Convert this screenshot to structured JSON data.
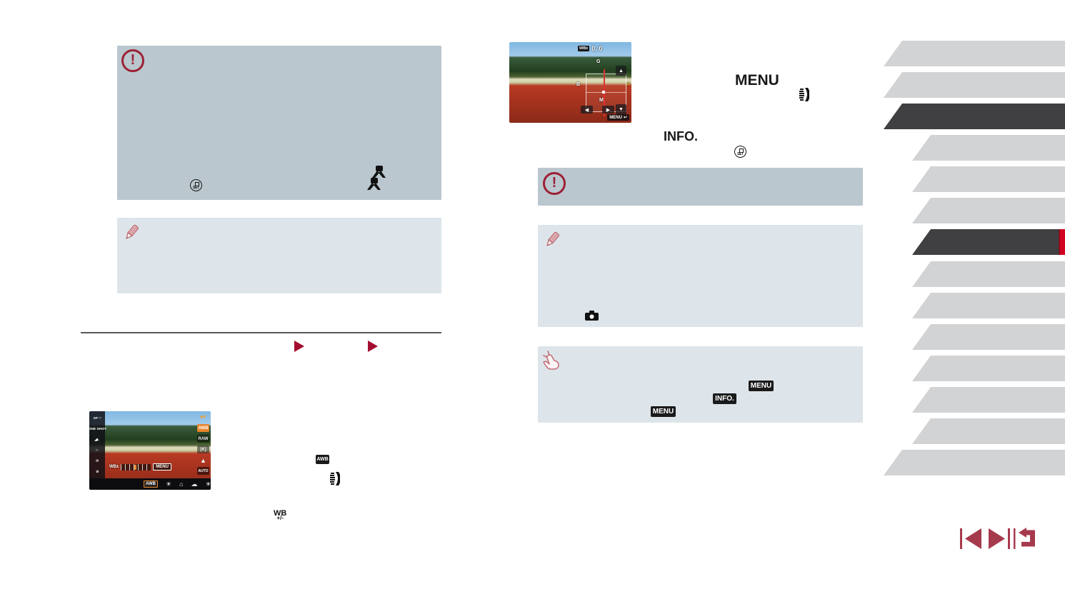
{
  "page_type": "camera manual page",
  "colors": {
    "warning_box_bg": "#bac7ce",
    "note_box_bg": "#dde5ea",
    "accent_red": "#9d2136",
    "triangle_red": "#a30d2f",
    "nav_red": "#a63a4d",
    "tab_light": "#d2d3d5",
    "tab_dark": "#404042",
    "tab_indicator_red": "#d0021f",
    "divider_gray": "#57585a"
  },
  "left_column": {
    "warning_box": {
      "set_button_label": "SET"
    },
    "inline_icons": {
      "awb_badge": "AWB",
      "wb_shift_top": "WB",
      "wb_shift_bottom": "+/-"
    }
  },
  "right_column": {
    "menu_label": "MENU",
    "info_label": "INFO.",
    "set_button_label": "SET",
    "touch_box_badges": [
      "MENU",
      "INFO.",
      "MENU"
    ]
  },
  "quick_menu_screen": {
    "left_items": [
      "AF □",
      "ONE SHOT",
      "◢L",
      "□",
      "⟳",
      "⊘"
    ],
    "right_items": [
      "↩",
      "AWB",
      "RAW",
      "[K]",
      "▲",
      "AUTO"
    ],
    "wb_label": "WB±",
    "menu_badge": "MENU",
    "bottom_items": [
      "AWB",
      "☀",
      "⌂",
      "☁",
      "☀"
    ]
  },
  "wb_screen": {
    "wb_badge": "WB±",
    "title_value": "0, 0",
    "axis_g": "G",
    "axis_b": "B",
    "axis_a": "A",
    "axis_m": "M",
    "btn_up": "▲",
    "btn_down": "▼",
    "btn_left": "◀",
    "btn_right": "▶",
    "menu_badge": "MENU",
    "return_arrow": "↩"
  },
  "sidebar": {
    "tabs": [
      {
        "variant": "light",
        "indent": false,
        "active": false
      },
      {
        "variant": "light",
        "indent": false,
        "active": false
      },
      {
        "variant": "dark",
        "indent": false,
        "active": false
      },
      {
        "variant": "light",
        "indent": true,
        "active": false
      },
      {
        "variant": "light",
        "indent": true,
        "active": false
      },
      {
        "variant": "light",
        "indent": true,
        "active": false
      },
      {
        "variant": "dark",
        "indent": true,
        "active": true
      },
      {
        "variant": "light",
        "indent": true,
        "active": false
      },
      {
        "variant": "light",
        "indent": true,
        "active": false
      },
      {
        "variant": "light",
        "indent": true,
        "active": false
      },
      {
        "variant": "light",
        "indent": true,
        "active": false
      },
      {
        "variant": "light",
        "indent": true,
        "active": false
      },
      {
        "variant": "light",
        "indent": true,
        "active": false
      },
      {
        "variant": "light",
        "indent": false,
        "active": false
      }
    ]
  },
  "nav_buttons": [
    "previous-page",
    "next-page",
    "return"
  ]
}
